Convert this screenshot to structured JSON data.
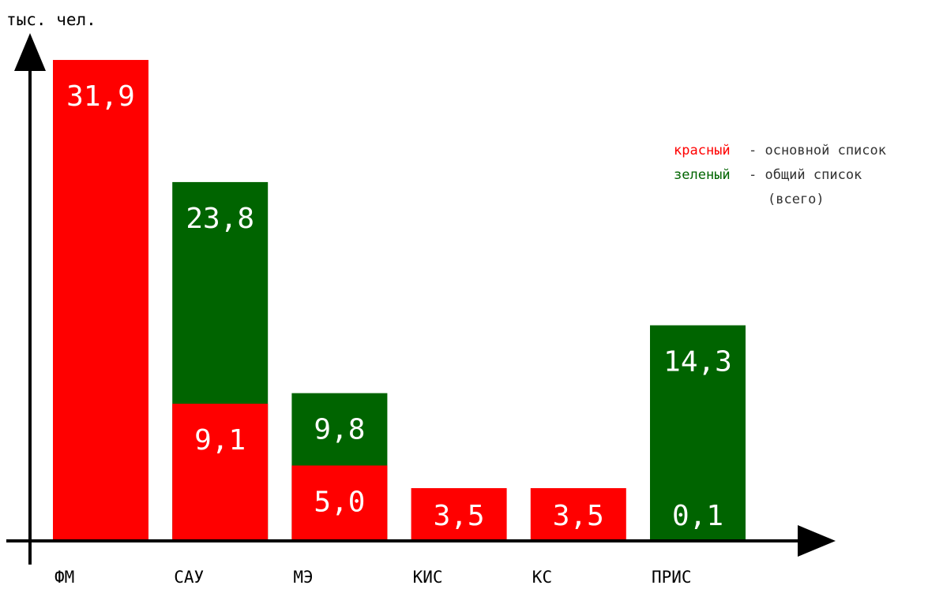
{
  "chart_data": {
    "type": "bar",
    "y_label": "тыс. чел.",
    "categories": [
      "ФМ",
      "САУ",
      "МЭ",
      "КИС",
      "КС",
      "ПРИС"
    ],
    "series": [
      {
        "name": "зеленый",
        "description": [
          "- общий список",
          "(всего)"
        ],
        "color": "#006400",
        "values": [
          null,
          23.8,
          9.8,
          null,
          null,
          14.3
        ],
        "value_labels": [
          null,
          "23,8",
          "9,8",
          null,
          null,
          "14,3"
        ]
      },
      {
        "name": "красный",
        "description": [
          "- основной список"
        ],
        "color": "#ff0000",
        "values": [
          31.9,
          9.1,
          5.0,
          3.5,
          3.5,
          0.1
        ],
        "value_labels": [
          "31,9",
          "9,1",
          "5,0",
          "3,5",
          "3,5",
          "0,1"
        ]
      }
    ],
    "ylim": [
      0,
      33
    ]
  }
}
